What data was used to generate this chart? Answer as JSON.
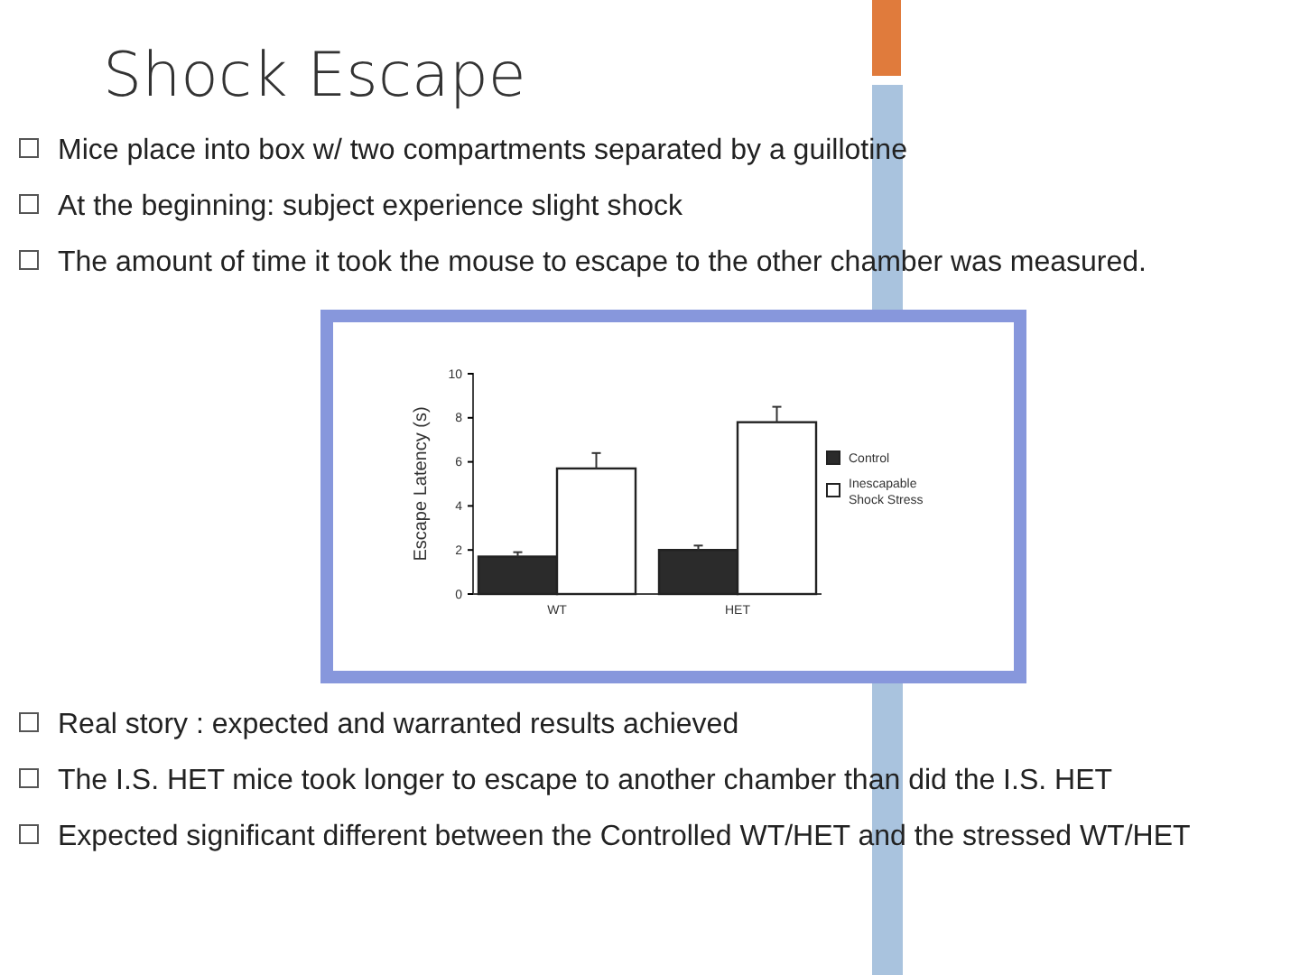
{
  "chart_data": {
    "type": "bar",
    "title": "Shock Escape",
    "ylabel": "Escape Latency (s)",
    "categories": [
      "WT",
      "HET"
    ],
    "series": [
      {
        "name": "Control",
        "color": "#2b2b2b",
        "values": [
          1.7,
          2.0
        ],
        "errors": [
          0.2,
          0.2
        ]
      },
      {
        "name": "Inescapable Shock Stress",
        "color": "#ffffff",
        "values": [
          5.7,
          7.8
        ],
        "errors": [
          0.7,
          0.7
        ]
      }
    ],
    "ylim": [
      0,
      10
    ],
    "yticks": [
      0,
      2,
      4,
      6,
      8,
      10
    ],
    "grid": false,
    "legend": "right",
    "annotations": [
      "Mice place into box w/  two compartments separated by a guillotine",
      "At the beginning: subject experience slight shock",
      "The amount of time it took the mouse to escape to the other chamber was measured.",
      "Real story : expected and warranted results achieved",
      "The I.S. HET mice took longer to escape to another chamber than did the I.S. HET",
      "Expected significant different between the Controlled WT/HET and the stressed WT/HET"
    ]
  }
}
